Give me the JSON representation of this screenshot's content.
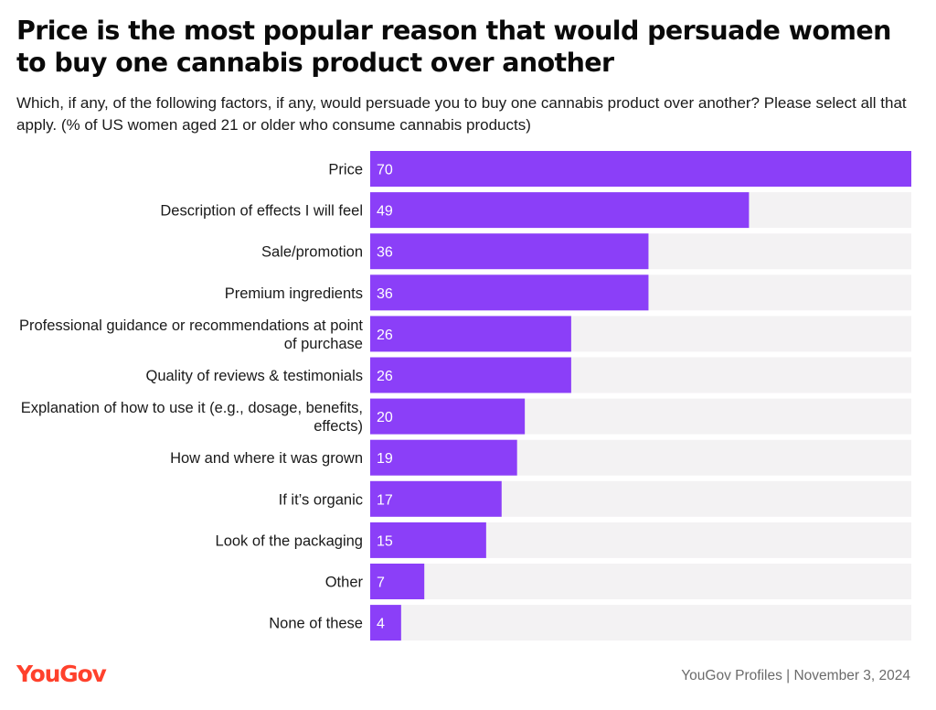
{
  "title": "Price is the most popular reason that would persuade women to buy one cannabis product over another",
  "subtitle": "Which, if any, of the following factors, if any, would persuade you to buy one cannabis product over another? Please select all that apply. (% of US women aged 21 or older who consume cannabis products)",
  "footer": {
    "logo": "YouGov",
    "source": "YouGov Profiles | November 3, 2024"
  },
  "colors": {
    "bar": "#8b3ff8",
    "track": "#f3f2f3",
    "logo": "#ff412c"
  },
  "chart_data": {
    "type": "bar",
    "orientation": "horizontal",
    "categories": [
      "Price",
      "Description of effects I will feel",
      "Sale/promotion",
      "Premium ingredients",
      "Professional guidance or recommendations at point of purchase",
      "Quality of reviews & testimonials",
      "Explanation of how to use it (e.g., dosage, benefits, effects)",
      "How and where it was grown",
      "If it’s organic",
      "Look of the packaging",
      "Other",
      "None of these"
    ],
    "values": [
      70,
      49,
      36,
      36,
      26,
      26,
      20,
      19,
      17,
      15,
      7,
      4
    ],
    "xlim": [
      0,
      70
    ],
    "grid": false,
    "legend": "none"
  }
}
